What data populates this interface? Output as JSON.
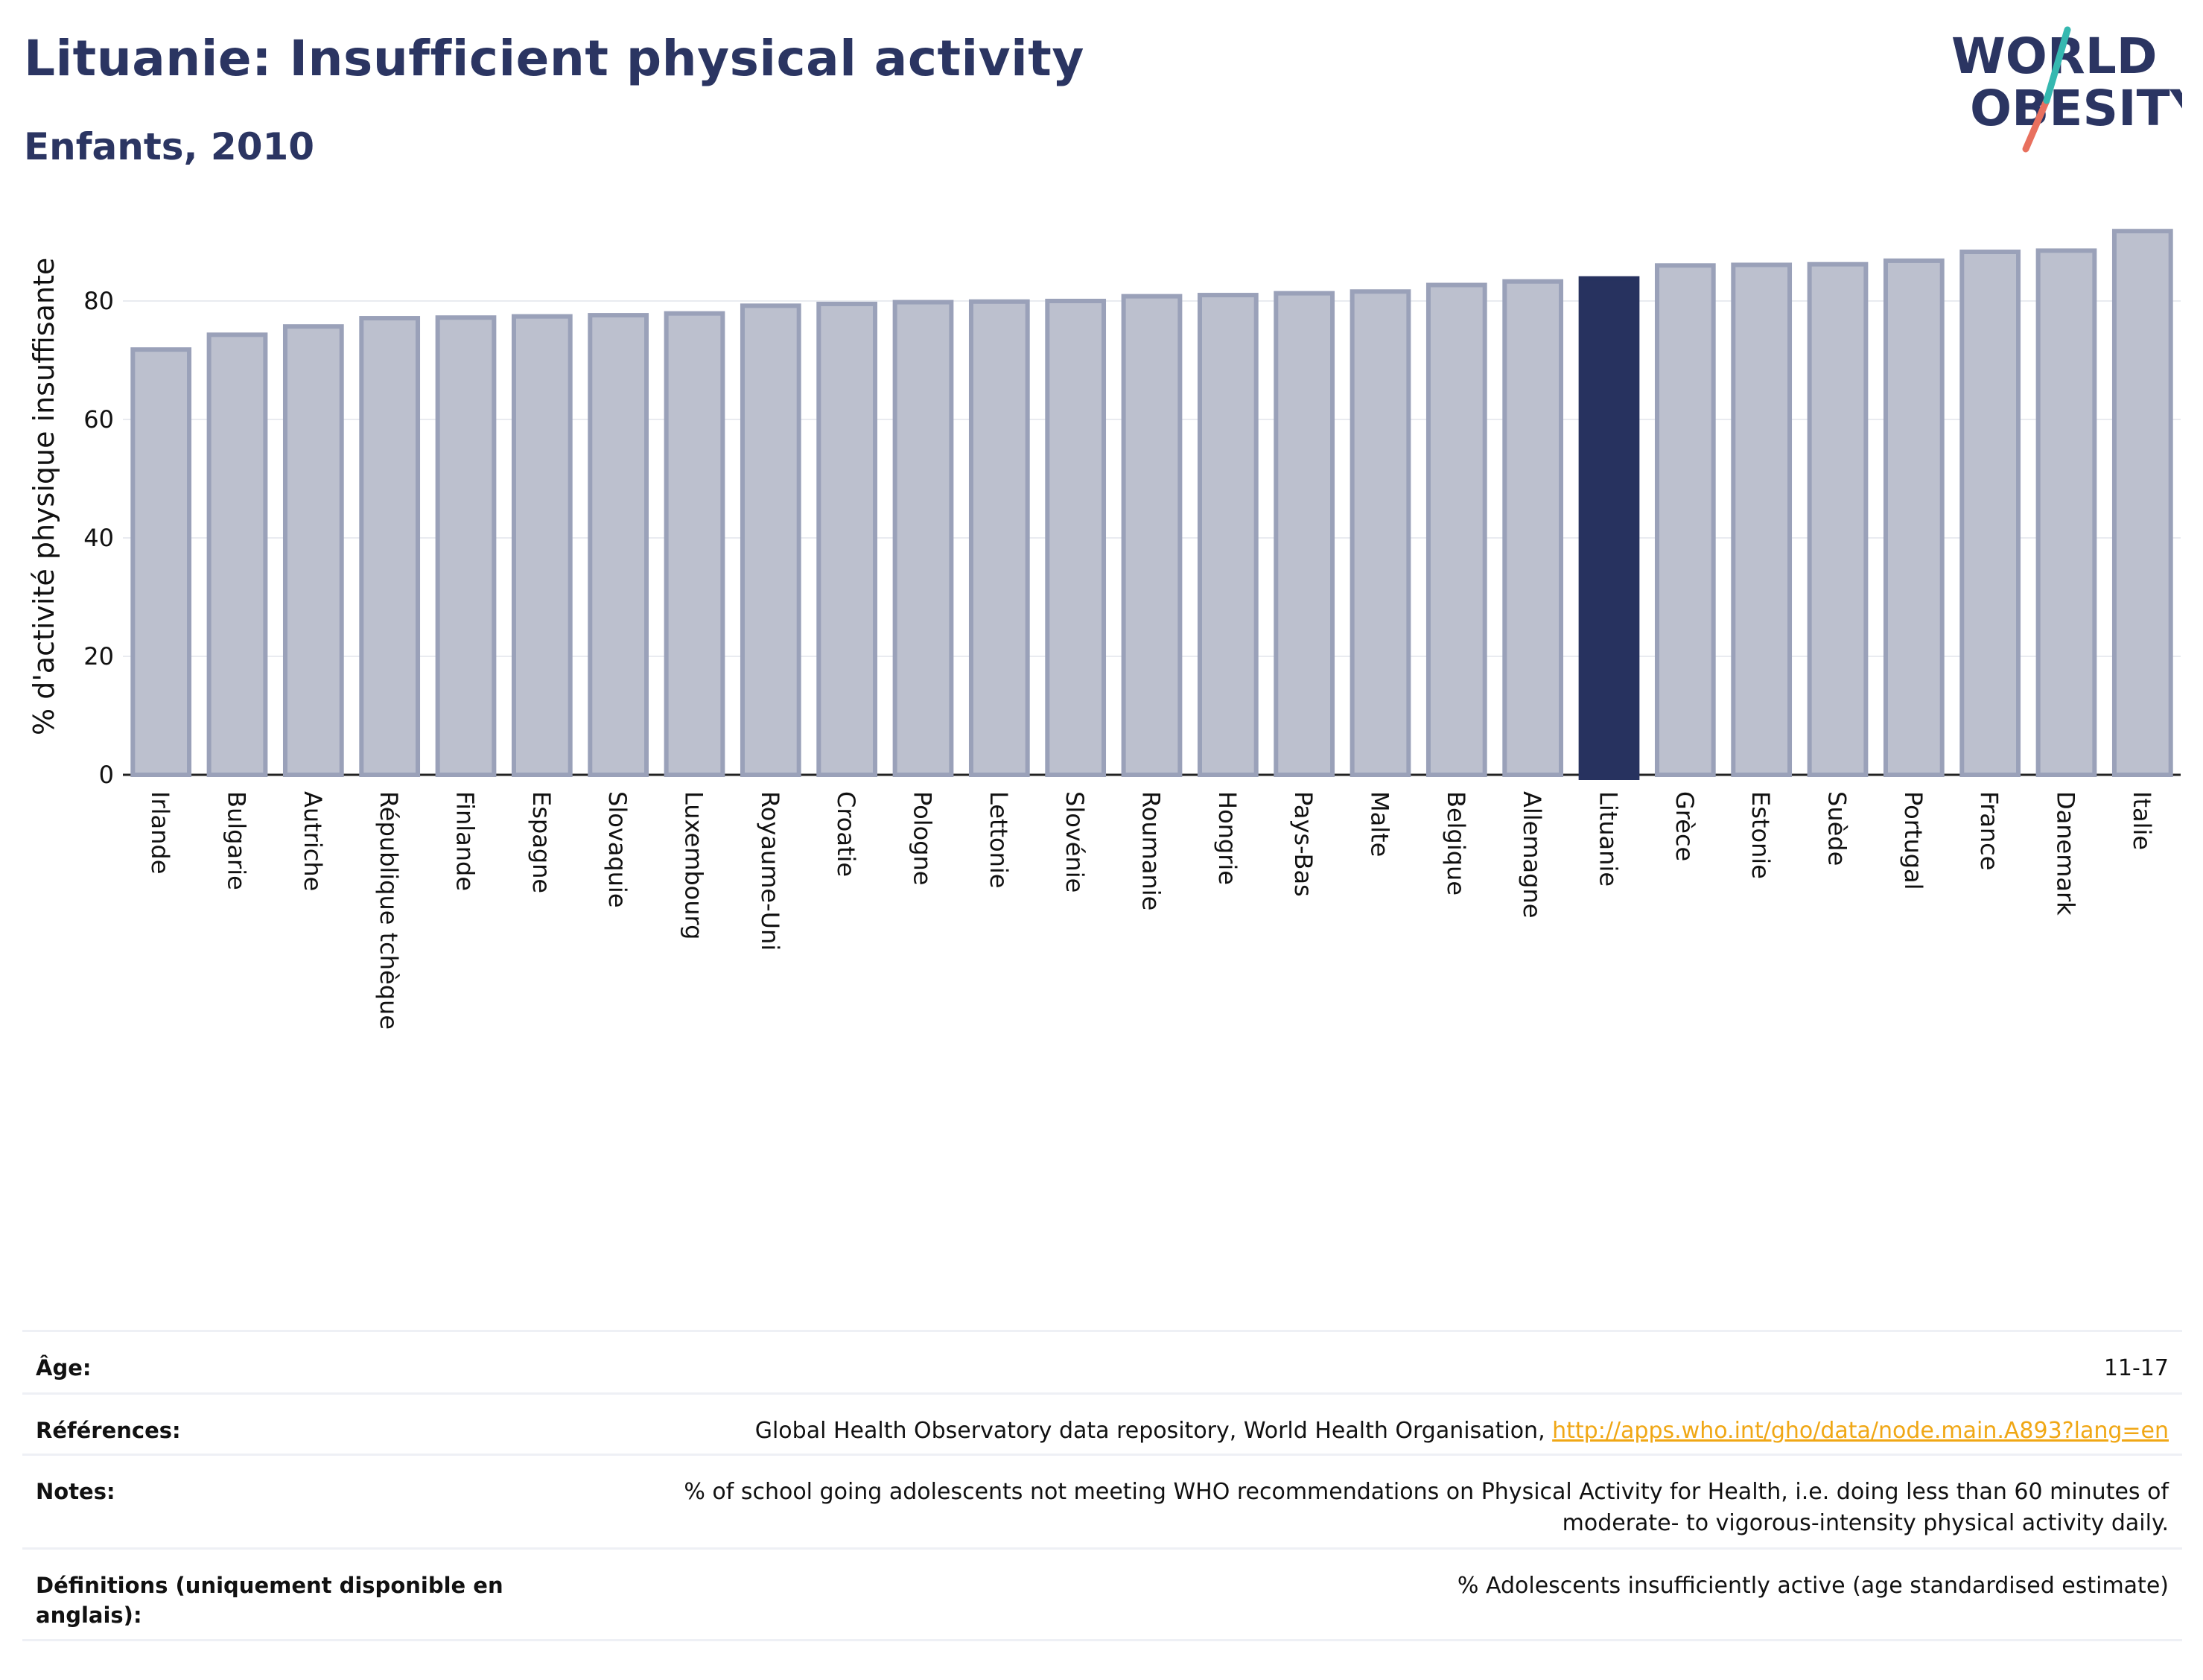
{
  "header": {
    "title": "Lituanie: Insufficient physical activity",
    "subtitle": "Enfants, 2010"
  },
  "logo": {
    "line1": "WORLD",
    "line2": "OBESITY"
  },
  "colors": {
    "highlight": "#27325f",
    "bar": "#bcc0ce",
    "bar_stroke": "#9aa1b9",
    "link": "#f0a715"
  },
  "chart_data": {
    "type": "bar",
    "title": "Lituanie: Insufficient physical activity",
    "subtitle": "Enfants, 2010",
    "ylabel": "% d'activité physique insuffisante",
    "xlabel": "",
    "ylim": [
      0,
      95
    ],
    "yticks": [
      0,
      20,
      40,
      60,
      80
    ],
    "grid": true,
    "highlight": "Lituanie",
    "categories": [
      "Irlande",
      "Bulgarie",
      "Autriche",
      "République tchèque",
      "Finlande",
      "Espagne",
      "Slovaquie",
      "Luxembourg",
      "Royaume-Uni",
      "Croatie",
      "Pologne",
      "Lettonie",
      "Slovénie",
      "Roumanie",
      "Hongrie",
      "Pays-Bas",
      "Malte",
      "Belgique",
      "Allemagne",
      "Lituanie",
      "Grèce",
      "Estonie",
      "Suède",
      "Portugal",
      "France",
      "Danemark",
      "Italie"
    ],
    "values": [
      71.8,
      74.3,
      75.7,
      77.1,
      77.2,
      77.4,
      77.6,
      77.9,
      79.2,
      79.5,
      79.8,
      79.9,
      80.0,
      80.8,
      81.0,
      81.3,
      81.6,
      82.7,
      83.3,
      83.8,
      86.0,
      86.1,
      86.2,
      86.8,
      88.3,
      88.5,
      91.8
    ]
  },
  "meta": {
    "age_label": "Âge:",
    "age_value": "11-17",
    "refs_label": "Références:",
    "refs_text": "Global Health Observatory data repository, World Health Organisation, ",
    "refs_link": "http://apps.who.int/gho/data/node.main.A893?lang=en",
    "notes_label": "Notes:",
    "notes_value": "% of school going adolescents not meeting WHO recommendations on Physical Activity for Health, i.e. doing less than 60 minutes of moderate- to vigorous-intensity physical activity daily.",
    "defs_label": "Définitions (uniquement disponible en anglais):",
    "defs_value": "% Adolescents insufficiently active (age standardised estimate)"
  }
}
